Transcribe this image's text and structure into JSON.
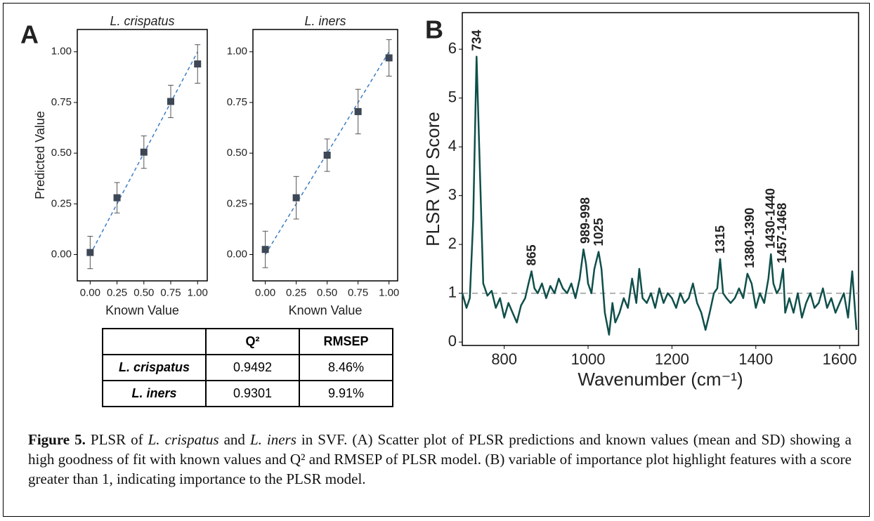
{
  "panel_labels": [
    "A",
    "B"
  ],
  "chart_data": [
    {
      "type": "scatter",
      "title": "L. crispatus",
      "x_label": "Known Value",
      "y_label": "Predicted Value",
      "x": [
        0,
        0.25,
        0.5,
        0.75,
        1
      ],
      "values": [
        0.01,
        0.28,
        0.505,
        0.755,
        0.94
      ],
      "errors": [
        0.08,
        0.075,
        0.08,
        0.08,
        0.095
      ],
      "color": "#3d4756",
      "error_color": "#555555",
      "fit": {
        "x": [
          0,
          1
        ],
        "values": [
          0,
          1
        ],
        "color": "#3b7dc4",
        "dashed": true
      },
      "xlim": [
        -0.12,
        1.09
      ],
      "ylim": [
        -0.13,
        1.11
      ],
      "xticks": [
        {
          "value": 0,
          "label": "0.00"
        },
        {
          "value": 0.25,
          "label": "0.25"
        },
        {
          "value": 0.5,
          "label": "0.50"
        },
        {
          "value": 0.75,
          "label": "0.75"
        },
        {
          "value": 1,
          "label": "1.00"
        }
      ],
      "yticks": [
        {
          "value": 0,
          "label": "0.00"
        },
        {
          "value": 0.25,
          "label": "0.25"
        },
        {
          "value": 0.5,
          "label": "0.50"
        },
        {
          "value": 0.75,
          "label": "0.75"
        },
        {
          "value": 1,
          "label": "1.00"
        }
      ]
    },
    {
      "type": "scatter",
      "title": "L. iners",
      "x_label": "Known Value",
      "x": [
        0,
        0.25,
        0.5,
        0.75,
        1
      ],
      "values": [
        0.025,
        0.28,
        0.49,
        0.705,
        0.97
      ],
      "errors": [
        0.09,
        0.105,
        0.08,
        0.11,
        0.09
      ],
      "color": "#3d4756",
      "error_color": "#555555",
      "fit": {
        "x": [
          0,
          1
        ],
        "values": [
          0,
          1
        ],
        "color": "#3b7dc4",
        "dashed": true
      },
      "xlim": [
        -0.1,
        1.07
      ],
      "ylim": [
        -0.13,
        1.11
      ],
      "xticks": [
        {
          "value": 0,
          "label": "0.00"
        },
        {
          "value": 0.25,
          "label": "0.25"
        },
        {
          "value": 0.5,
          "label": "0.50"
        },
        {
          "value": 0.75,
          "label": "0.75"
        },
        {
          "value": 1,
          "label": "1.00"
        }
      ],
      "yticks": [
        {
          "value": 0,
          "label": "0.00"
        },
        {
          "value": 0.25,
          "label": "0.25"
        },
        {
          "value": 0.5,
          "label": "0.50"
        },
        {
          "value": 0.75,
          "label": "0.75"
        },
        {
          "value": 1,
          "label": "1.00"
        }
      ]
    },
    {
      "type": "line",
      "x_label": "Wavenumber (cm⁻¹)",
      "y_label": "PLSR VIP Score",
      "color": "#0f4f4a",
      "x": [
        700,
        710,
        718,
        726,
        734,
        742,
        750,
        760,
        770,
        780,
        790,
        800,
        810,
        820,
        830,
        840,
        850,
        858,
        865,
        872,
        880,
        890,
        900,
        910,
        920,
        930,
        940,
        950,
        960,
        970,
        980,
        989,
        995,
        1000,
        1008,
        1015,
        1025,
        1032,
        1040,
        1050,
        1058,
        1065,
        1075,
        1085,
        1095,
        1105,
        1115,
        1122,
        1130,
        1140,
        1150,
        1160,
        1170,
        1180,
        1190,
        1200,
        1210,
        1220,
        1230,
        1240,
        1250,
        1260,
        1270,
        1280,
        1290,
        1300,
        1308,
        1315,
        1322,
        1330,
        1340,
        1350,
        1360,
        1370,
        1380,
        1390,
        1400,
        1410,
        1420,
        1430,
        1436,
        1442,
        1450,
        1457,
        1465,
        1470,
        1480,
        1490,
        1500,
        1510,
        1520,
        1530,
        1540,
        1550,
        1560,
        1570,
        1580,
        1590,
        1600,
        1610,
        1620,
        1630,
        1640
      ],
      "values": [
        1.0,
        0.7,
        0.9,
        2.5,
        5.85,
        3.5,
        1.2,
        0.95,
        1.05,
        0.7,
        0.9,
        0.5,
        0.8,
        0.6,
        0.4,
        0.75,
        0.9,
        1.2,
        1.45,
        1.1,
        1.0,
        1.2,
        0.9,
        1.15,
        1.0,
        1.3,
        1.1,
        1.0,
        1.2,
        0.9,
        1.3,
        1.9,
        1.6,
        1.2,
        1.0,
        1.5,
        1.85,
        1.5,
        0.6,
        0.15,
        0.8,
        0.4,
        0.6,
        0.9,
        0.7,
        1.3,
        0.8,
        1.5,
        0.9,
        0.8,
        1.0,
        0.7,
        1.1,
        0.8,
        1.0,
        0.9,
        0.7,
        1.0,
        0.8,
        0.9,
        1.2,
        0.8,
        0.6,
        0.25,
        0.6,
        1.0,
        1.1,
        1.7,
        1.0,
        0.9,
        0.8,
        0.9,
        1.1,
        0.9,
        1.4,
        1.2,
        0.7,
        1.0,
        0.8,
        1.3,
        1.8,
        1.2,
        1.0,
        1.1,
        1.5,
        0.6,
        0.9,
        0.6,
        1.0,
        0.5,
        0.8,
        1.0,
        0.7,
        0.8,
        1.1,
        0.7,
        0.9,
        0.6,
        0.8,
        1.0,
        0.5,
        1.45,
        0.25
      ],
      "reference_line": {
        "value": 1,
        "color": "#999999",
        "dashed": true
      },
      "annotations": [
        {
          "text": "734",
          "x": 734,
          "y": 5.85
        },
        {
          "text": "865",
          "x": 865,
          "y": 1.45
        },
        {
          "text": "989-998",
          "x": 993,
          "y": 1.9
        },
        {
          "text": "1025",
          "x": 1025,
          "y": 1.85
        },
        {
          "text": "1315",
          "x": 1315,
          "y": 1.7
        },
        {
          "text": "1380-1390",
          "x": 1385,
          "y": 1.4
        },
        {
          "text": "1430-1440",
          "x": 1435,
          "y": 1.8
        },
        {
          "text": "1457-1468",
          "x": 1462,
          "y": 1.5
        }
      ],
      "xlim": [
        700,
        1645
      ],
      "ylim": [
        -0.07,
        6.75
      ],
      "xticks": [
        800,
        1000,
        1200,
        1400,
        1600
      ],
      "yticks": [
        0,
        1,
        2,
        3,
        4,
        5,
        6
      ]
    }
  ],
  "table": {
    "header": [
      "Q²",
      "RMSEP"
    ],
    "rows": [
      {
        "label": "L. crispatus",
        "cells": [
          "0.9492",
          "8.46%"
        ]
      },
      {
        "label": "L. iners",
        "cells": [
          "0.9301",
          "9.91%"
        ]
      }
    ]
  },
  "caption": [
    {
      "text": "Figure 5.",
      "bold": true
    },
    {
      "text": " PLSR of "
    },
    {
      "text": "L. crispatus",
      "italic": true
    },
    {
      "text": " and "
    },
    {
      "text": "L. iners",
      "italic": true
    },
    {
      "text": " in SVF. (A) Scatter plot of PLSR predictions and known values (mean and SD) showing a high goodness of fit with known values and Q² and RMSEP of PLSR model. (B) variable of importance plot highlight features with a score greater than 1, indicating importance to the PLSR model."
    }
  ]
}
